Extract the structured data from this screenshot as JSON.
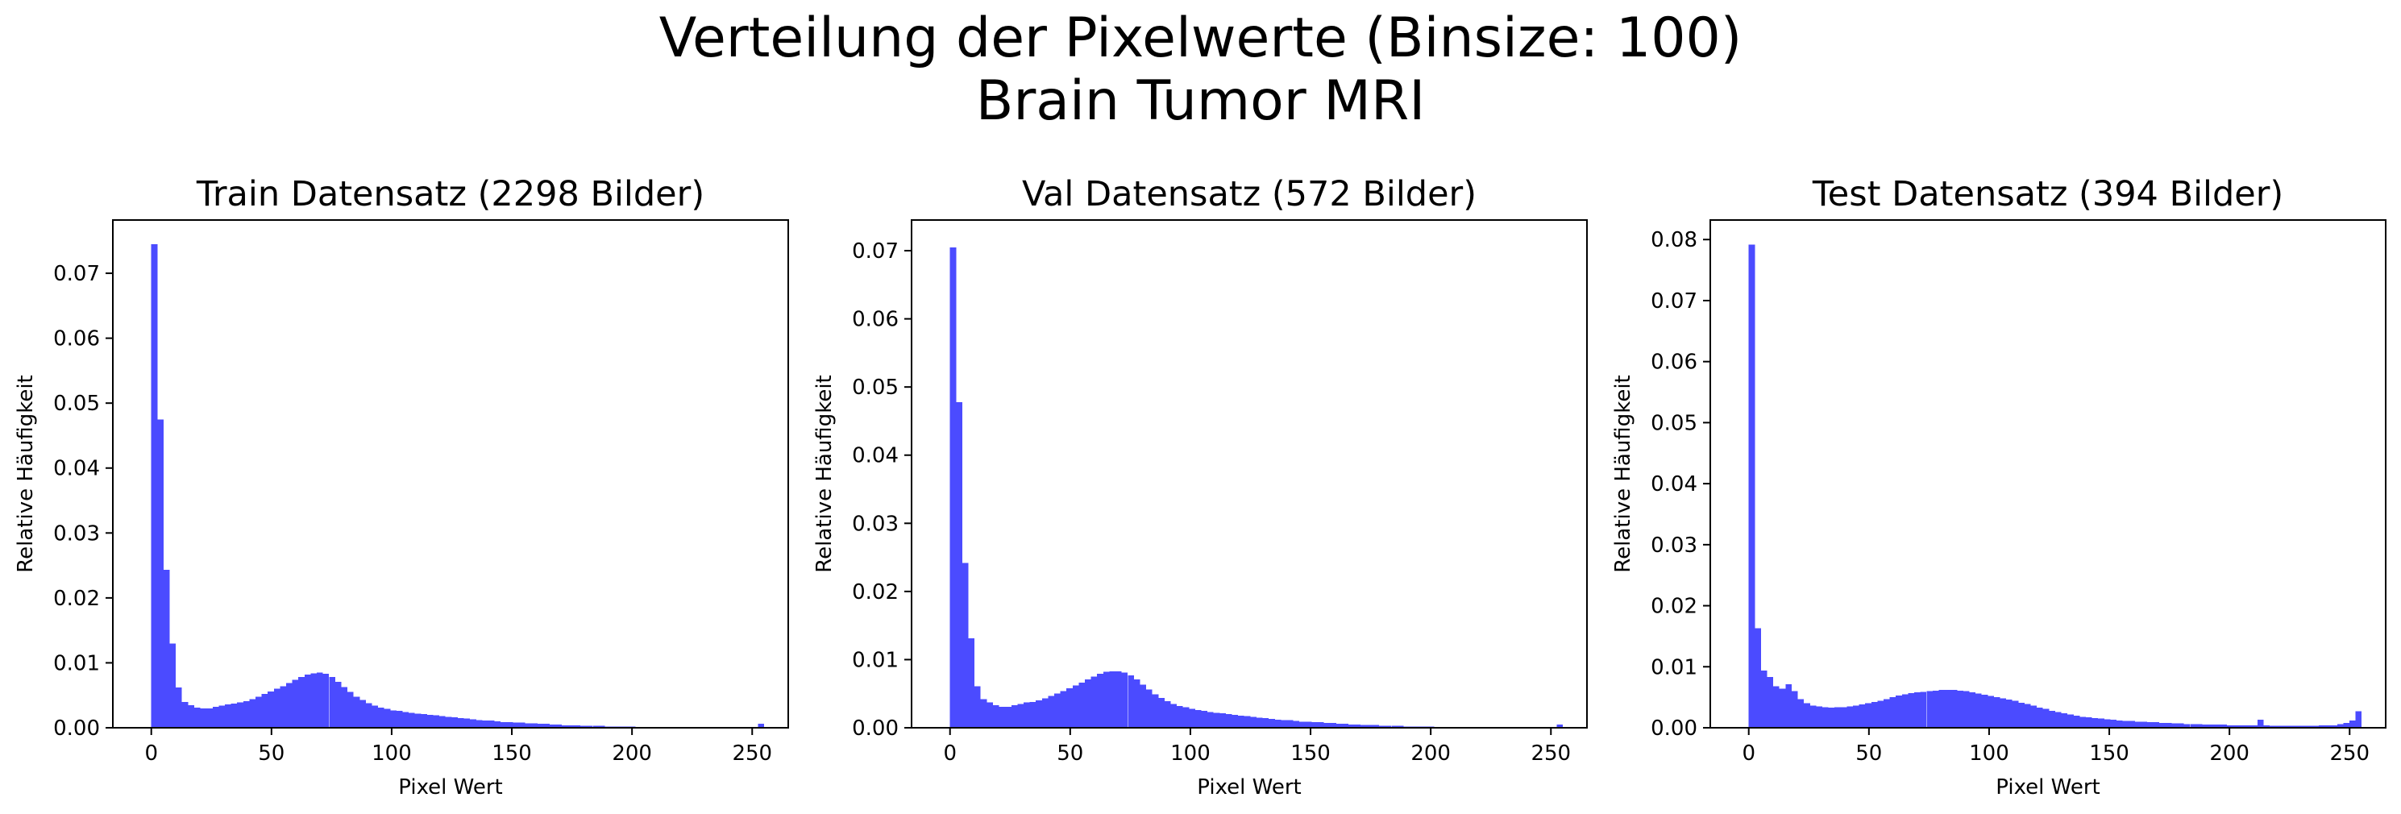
{
  "figure": {
    "title_line1": "Verteilung der Pixelwerte (Binsize: 100)",
    "title_line2": "Brain Tumor MRI"
  },
  "colors": {
    "bar": "#4b4bff",
    "axis": "#000000",
    "background": "#ffffff"
  },
  "chart_data": [
    {
      "type": "bar",
      "title": "Train Datensatz (2298 Bilder)",
      "xlabel": "Pixel Wert",
      "ylabel": "Relative Häufigkeit",
      "xlim": [
        -16,
        265
      ],
      "ylim": [
        0,
        0.0782
      ],
      "xticks": [
        0,
        50,
        100,
        150,
        200,
        250
      ],
      "yticks": [
        0.0,
        0.01,
        0.02,
        0.03,
        0.04,
        0.05,
        0.06,
        0.07
      ],
      "ytick_labels": [
        "0.00",
        "0.01",
        "0.02",
        "0.03",
        "0.04",
        "0.05",
        "0.06",
        "0.07"
      ],
      "bin_width": 2.55,
      "x": [
        0,
        2.55,
        5.1,
        7.65,
        10.2,
        12.75,
        15.3,
        17.85,
        20.4,
        22.95,
        25.5,
        28.05,
        30.6,
        33.15,
        35.7,
        38.25,
        40.8,
        43.35,
        45.9,
        48.45,
        51,
        53.55,
        56.1,
        58.65,
        61.2,
        63.75,
        66.3,
        68.85,
        71.4,
        73.95,
        76.5,
        79.05,
        81.6,
        84.15,
        86.7,
        89.25,
        91.8,
        94.35,
        96.9,
        99.45,
        102,
        104.55,
        107.1,
        109.65,
        112.2,
        114.75,
        117.3,
        119.85,
        122.4,
        124.95,
        127.5,
        130.05,
        132.6,
        135.15,
        137.7,
        140.25,
        142.8,
        145.35,
        147.9,
        150.45,
        153,
        155.55,
        158.1,
        160.65,
        163.2,
        165.75,
        168.3,
        170.85,
        173.4,
        175.95,
        178.5,
        181.05,
        183.6,
        186.15,
        188.7,
        191.25,
        193.8,
        196.35,
        198.9,
        201.45,
        204,
        206.55,
        209.1,
        211.65,
        214.2,
        216.75,
        219.3,
        221.85,
        224.4,
        226.95,
        229.5,
        232.05,
        234.6,
        237.15,
        239.7,
        242.25,
        244.8,
        247.35,
        249.9,
        252.45
      ],
      "values": [
        0.0745,
        0.0475,
        0.0243,
        0.013,
        0.0062,
        0.004,
        0.0035,
        0.0031,
        0.003,
        0.003,
        0.0032,
        0.0034,
        0.0036,
        0.0037,
        0.0039,
        0.0041,
        0.0044,
        0.0048,
        0.0052,
        0.0056,
        0.006,
        0.0064,
        0.0069,
        0.0074,
        0.0078,
        0.0082,
        0.0084,
        0.0085,
        0.0083,
        0.0078,
        0.0071,
        0.0063,
        0.0055,
        0.0048,
        0.0043,
        0.0038,
        0.0034,
        0.0031,
        0.0029,
        0.0027,
        0.0026,
        0.0024,
        0.0023,
        0.0022,
        0.0021,
        0.002,
        0.0019,
        0.0018,
        0.0017,
        0.0016,
        0.0015,
        0.0014,
        0.0013,
        0.0012,
        0.0011,
        0.0011,
        0.001,
        0.0009,
        0.0009,
        0.0008,
        0.0008,
        0.0007,
        0.0007,
        0.0006,
        0.0006,
        0.0005,
        0.0005,
        0.0004,
        0.0004,
        0.0004,
        0.0003,
        0.0003,
        0.0003,
        0.0003,
        0.0002,
        0.0002,
        0.0002,
        0.0002,
        0.0002,
        0.0001,
        0.0001,
        0.0001,
        0.0001,
        0.0001,
        0.0001,
        0.0001,
        0.0001,
        0.0001,
        0.0001,
        0.0001,
        0.0001,
        0.0001,
        0.0001,
        0.0001,
        0.0001,
        0.0001,
        0.0001,
        0.0001,
        0.0001,
        0.0006
      ]
    },
    {
      "type": "bar",
      "title": "Val Datensatz (572 Bilder)",
      "xlabel": "Pixel Wert",
      "ylabel": "Relative Häufigkeit",
      "xlim": [
        -16,
        265
      ],
      "ylim": [
        0,
        0.0745
      ],
      "xticks": [
        0,
        50,
        100,
        150,
        200,
        250
      ],
      "yticks": [
        0.0,
        0.01,
        0.02,
        0.03,
        0.04,
        0.05,
        0.06,
        0.07
      ],
      "ytick_labels": [
        "0.00",
        "0.01",
        "0.02",
        "0.03",
        "0.04",
        "0.05",
        "0.06",
        "0.07"
      ],
      "bin_width": 2.55,
      "x": [
        0,
        2.55,
        5.1,
        7.65,
        10.2,
        12.75,
        15.3,
        17.85,
        20.4,
        22.95,
        25.5,
        28.05,
        30.6,
        33.15,
        35.7,
        38.25,
        40.8,
        43.35,
        45.9,
        48.45,
        51,
        53.55,
        56.1,
        58.65,
        61.2,
        63.75,
        66.3,
        68.85,
        71.4,
        73.95,
        76.5,
        79.05,
        81.6,
        84.15,
        86.7,
        89.25,
        91.8,
        94.35,
        96.9,
        99.45,
        102,
        104.55,
        107.1,
        109.65,
        112.2,
        114.75,
        117.3,
        119.85,
        122.4,
        124.95,
        127.5,
        130.05,
        132.6,
        135.15,
        137.7,
        140.25,
        142.8,
        145.35,
        147.9,
        150.45,
        153,
        155.55,
        158.1,
        160.65,
        163.2,
        165.75,
        168.3,
        170.85,
        173.4,
        175.95,
        178.5,
        181.05,
        183.6,
        186.15,
        188.7,
        191.25,
        193.8,
        196.35,
        198.9,
        201.45,
        204,
        206.55,
        209.1,
        211.65,
        214.2,
        216.75,
        219.3,
        221.85,
        224.4,
        226.95,
        229.5,
        232.05,
        234.6,
        237.15,
        239.7,
        242.25,
        244.8,
        247.35,
        249.9,
        252.45
      ],
      "values": [
        0.0705,
        0.0478,
        0.0242,
        0.0131,
        0.0061,
        0.0042,
        0.0037,
        0.0033,
        0.0031,
        0.0031,
        0.0033,
        0.0035,
        0.0037,
        0.0038,
        0.004,
        0.0043,
        0.0047,
        0.005,
        0.0054,
        0.0058,
        0.0062,
        0.0066,
        0.0071,
        0.0075,
        0.0079,
        0.0082,
        0.0083,
        0.0083,
        0.0081,
        0.0077,
        0.0071,
        0.0063,
        0.0056,
        0.0049,
        0.0044,
        0.0039,
        0.0035,
        0.0032,
        0.003,
        0.0028,
        0.0026,
        0.0025,
        0.0023,
        0.0022,
        0.0021,
        0.002,
        0.0019,
        0.0018,
        0.0017,
        0.0016,
        0.0015,
        0.0014,
        0.0013,
        0.0012,
        0.0011,
        0.0011,
        0.001,
        0.0009,
        0.0009,
        0.0008,
        0.0008,
        0.0007,
        0.0007,
        0.0006,
        0.0006,
        0.0005,
        0.0005,
        0.0004,
        0.0004,
        0.0004,
        0.0003,
        0.0003,
        0.0003,
        0.0003,
        0.0002,
        0.0002,
        0.0002,
        0.0002,
        0.0002,
        0.0001,
        0.0001,
        0.0001,
        0.0001,
        0.0001,
        0.0001,
        0.0001,
        0.0001,
        0.0001,
        0.0001,
        0.0001,
        0.0001,
        0.0001,
        0.0001,
        0.0001,
        0.0001,
        0.0001,
        0.0001,
        0.0001,
        0.0001,
        0.0005
      ]
    },
    {
      "type": "bar",
      "title": "Test Datensatz (394 Bilder)",
      "xlabel": "Pixel Wert",
      "ylabel": "Relative Häufigkeit",
      "xlim": [
        -16,
        265
      ],
      "ylim": [
        0,
        0.0832
      ],
      "xticks": [
        0,
        50,
        100,
        150,
        200,
        250
      ],
      "yticks": [
        0.0,
        0.01,
        0.02,
        0.03,
        0.04,
        0.05,
        0.06,
        0.07,
        0.08
      ],
      "ytick_labels": [
        "0.00",
        "0.01",
        "0.02",
        "0.03",
        "0.04",
        "0.05",
        "0.06",
        "0.07",
        "0.08"
      ],
      "bin_width": 2.55,
      "x": [
        0,
        2.55,
        5.1,
        7.65,
        10.2,
        12.75,
        15.3,
        17.85,
        20.4,
        22.95,
        25.5,
        28.05,
        30.6,
        33.15,
        35.7,
        38.25,
        40.8,
        43.35,
        45.9,
        48.45,
        51,
        53.55,
        56.1,
        58.65,
        61.2,
        63.75,
        66.3,
        68.85,
        71.4,
        73.95,
        76.5,
        79.05,
        81.6,
        84.15,
        86.7,
        89.25,
        91.8,
        94.35,
        96.9,
        99.45,
        102,
        104.55,
        107.1,
        109.65,
        112.2,
        114.75,
        117.3,
        119.85,
        122.4,
        124.95,
        127.5,
        130.05,
        132.6,
        135.15,
        137.7,
        140.25,
        142.8,
        145.35,
        147.9,
        150.45,
        153,
        155.55,
        158.1,
        160.65,
        163.2,
        165.75,
        168.3,
        170.85,
        173.4,
        175.95,
        178.5,
        181.05,
        183.6,
        186.15,
        188.7,
        191.25,
        193.8,
        196.35,
        198.9,
        201.45,
        204,
        206.55,
        209.1,
        211.65,
        214.2,
        216.75,
        219.3,
        221.85,
        224.4,
        226.95,
        229.5,
        232.05,
        234.6,
        237.15,
        239.7,
        242.25,
        244.8,
        247.35,
        249.9,
        252.45
      ],
      "values": [
        0.0792,
        0.0163,
        0.0094,
        0.0083,
        0.0068,
        0.0064,
        0.0071,
        0.006,
        0.0047,
        0.004,
        0.0036,
        0.0035,
        0.0034,
        0.0033,
        0.0034,
        0.0034,
        0.0035,
        0.0036,
        0.0038,
        0.004,
        0.0042,
        0.0044,
        0.0047,
        0.005,
        0.0053,
        0.0055,
        0.0057,
        0.0058,
        0.0059,
        0.006,
        0.0061,
        0.0062,
        0.0062,
        0.0062,
        0.0061,
        0.006,
        0.0058,
        0.0056,
        0.0054,
        0.0052,
        0.005,
        0.0048,
        0.0046,
        0.0044,
        0.0041,
        0.0039,
        0.0036,
        0.0033,
        0.0031,
        0.0028,
        0.0026,
        0.0024,
        0.0022,
        0.002,
        0.0018,
        0.0017,
        0.0016,
        0.0015,
        0.0014,
        0.0013,
        0.0012,
        0.0011,
        0.0011,
        0.001,
        0.001,
        0.0009,
        0.0009,
        0.0008,
        0.0008,
        0.0007,
        0.0007,
        0.0006,
        0.0006,
        0.0006,
        0.0005,
        0.0005,
        0.0005,
        0.0005,
        0.0004,
        0.0004,
        0.0004,
        0.0004,
        0.0004,
        0.0013,
        0.0004,
        0.0003,
        0.0003,
        0.0003,
        0.0003,
        0.0003,
        0.0003,
        0.0003,
        0.0003,
        0.0004,
        0.0004,
        0.0004,
        0.0006,
        0.0008,
        0.0012,
        0.0027
      ]
    }
  ]
}
